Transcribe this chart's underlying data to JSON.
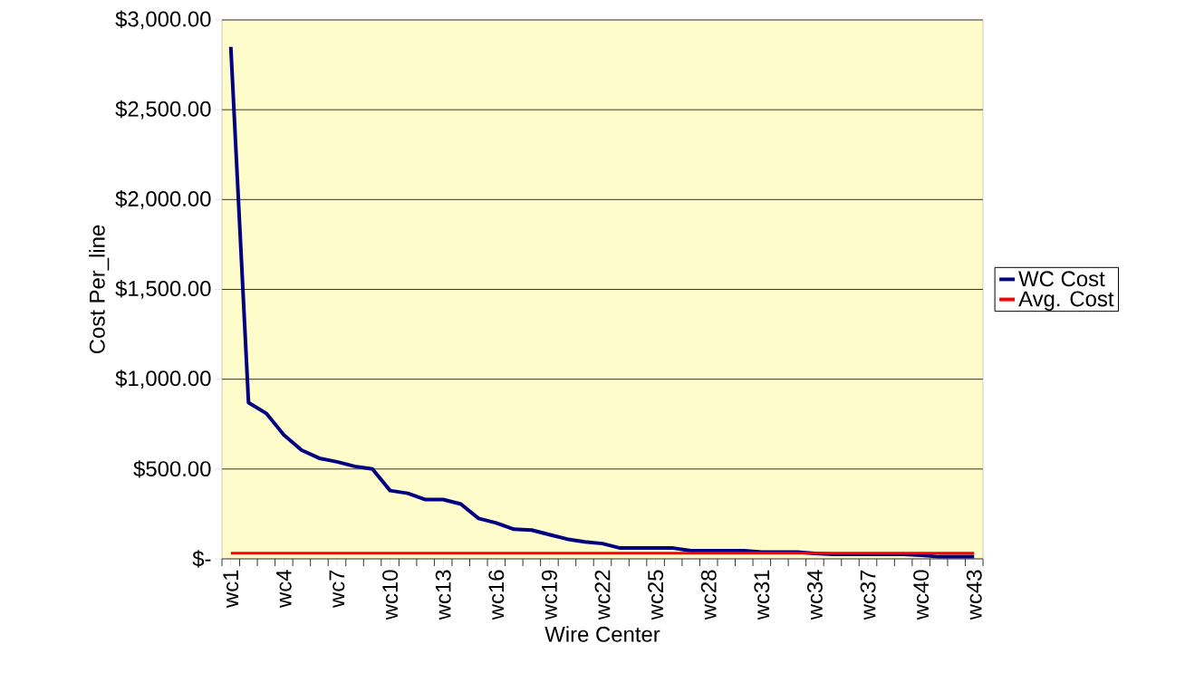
{
  "chart_data": {
    "type": "line",
    "xlabel": "Wire Center",
    "ylabel": "Cost Per_line",
    "categories": [
      "wc1",
      null,
      null,
      "wc4",
      null,
      null,
      "wc7",
      null,
      null,
      "wc10",
      null,
      null,
      "wc13",
      null,
      null,
      "wc16",
      null,
      null,
      "wc19",
      null,
      null,
      "wc22",
      null,
      null,
      "wc25",
      null,
      null,
      "wc28",
      null,
      null,
      "wc31",
      null,
      null,
      "wc34",
      null,
      null,
      "wc37",
      null,
      null,
      "wc40",
      null,
      null,
      "wc43"
    ],
    "series": [
      {
        "name": "WC Cost",
        "color": "#000080",
        "values": [
          2850,
          870,
          810,
          690,
          605,
          560,
          540,
          515,
          500,
          380,
          365,
          330,
          330,
          305,
          225,
          200,
          165,
          160,
          135,
          110,
          95,
          85,
          60,
          60,
          60,
          60,
          45,
          45,
          45,
          45,
          38,
          38,
          38,
          30,
          25,
          25,
          25,
          25,
          25,
          20,
          12,
          12,
          12
        ]
      },
      {
        "name": "Avg. Cost",
        "color": "#ff0000",
        "values": [
          32,
          32,
          32,
          32,
          32,
          32,
          32,
          32,
          32,
          32,
          32,
          32,
          32,
          32,
          32,
          32,
          32,
          32,
          32,
          32,
          32,
          32,
          32,
          32,
          32,
          32,
          32,
          32,
          32,
          32,
          32,
          32,
          32,
          32,
          32,
          32,
          32,
          32,
          32,
          32,
          32,
          32,
          32
        ]
      }
    ],
    "ylim": [
      0,
      3000
    ],
    "yticks": [
      {
        "value": 0,
        "label": "$-"
      },
      {
        "value": 500,
        "label": "$500.00"
      },
      {
        "value": 1000,
        "label": "$1,000.00"
      },
      {
        "value": 1500,
        "label": "$1,500.00"
      },
      {
        "value": 2000,
        "label": "$2,000.00"
      },
      {
        "value": 2500,
        "label": "$2,500.00"
      },
      {
        "value": 3000,
        "label": "$3,000.00"
      }
    ],
    "grid": "y",
    "legend": "right",
    "marker": "none",
    "line_style": "solid"
  }
}
